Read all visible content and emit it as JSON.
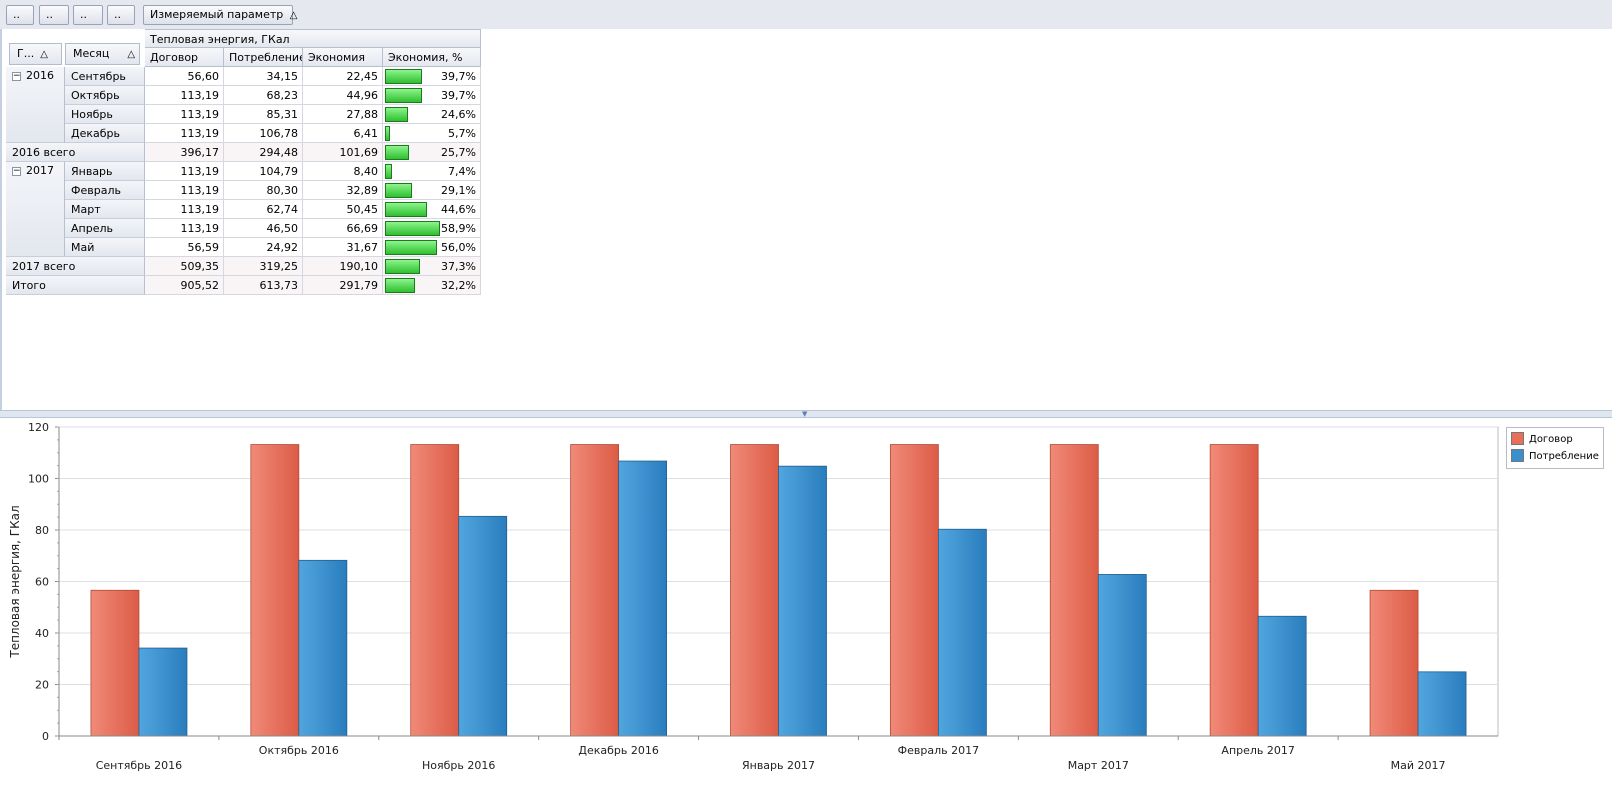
{
  "toolbar": {
    "filter_buttons": [
      "..",
      "..",
      "..",
      ".."
    ],
    "measure_button": "Измеряемый параметр",
    "measure_sort_glyph": "△"
  },
  "pivot": {
    "row_headers": {
      "year": "Г...",
      "year_sort": "△",
      "month": "Месяц",
      "month_sort": "△"
    },
    "group_header": "Тепловая энергия, ГКал",
    "columns": [
      "Договор",
      "Потребление",
      "Экономия",
      "Экономия, %"
    ],
    "expander_glyph": "−",
    "years": [
      {
        "year": "2016",
        "rows": [
          {
            "month": "Сентябрь",
            "contract": "56,60",
            "consumption": "34,15",
            "saving": "22,45",
            "percent": "39,7%",
            "percent_value": 39.7
          },
          {
            "month": "Октябрь",
            "contract": "113,19",
            "consumption": "68,23",
            "saving": "44,96",
            "percent": "39,7%",
            "percent_value": 39.7
          },
          {
            "month": "Ноябрь",
            "contract": "113,19",
            "consumption": "85,31",
            "saving": "27,88",
            "percent": "24,6%",
            "percent_value": 24.6
          },
          {
            "month": "Декабрь",
            "contract": "113,19",
            "consumption": "106,78",
            "saving": "6,41",
            "percent": "5,7%",
            "percent_value": 5.7
          }
        ],
        "total": {
          "label": "2016 всего",
          "contract": "396,17",
          "consumption": "294,48",
          "saving": "101,69",
          "percent": "25,7%",
          "percent_value": 25.7
        }
      },
      {
        "year": "2017",
        "rows": [
          {
            "month": "Январь",
            "contract": "113,19",
            "consumption": "104,79",
            "saving": "8,40",
            "percent": "7,4%",
            "percent_value": 7.4
          },
          {
            "month": "Февраль",
            "contract": "113,19",
            "consumption": "80,30",
            "saving": "32,89",
            "percent": "29,1%",
            "percent_value": 29.1
          },
          {
            "month": "Март",
            "contract": "113,19",
            "consumption": "62,74",
            "saving": "50,45",
            "percent": "44,6%",
            "percent_value": 44.6
          },
          {
            "month": "Апрель",
            "contract": "113,19",
            "consumption": "46,50",
            "saving": "66,69",
            "percent": "58,9%",
            "percent_value": 58.9
          },
          {
            "month": "Май",
            "contract": "56,59",
            "consumption": "24,92",
            "saving": "31,67",
            "percent": "56,0%",
            "percent_value": 56.0
          }
        ],
        "total": {
          "label": "2017 всего",
          "contract": "509,35",
          "consumption": "319,25",
          "saving": "190,10",
          "percent": "37,3%",
          "percent_value": 37.3
        }
      }
    ],
    "grand_total": {
      "label": "Итого",
      "contract": "905,52",
      "consumption": "613,73",
      "saving": "291,79",
      "percent": "32,2%",
      "percent_value": 32.2
    }
  },
  "splitter_glyph": "▼",
  "colors": {
    "contract": "#e8705a",
    "consumption": "#3a8fcc",
    "percent_bar": "#3fcf3f"
  },
  "chart_data": {
    "type": "bar",
    "title": "",
    "xlabel": "",
    "ylabel": "Тепловая энергия, ГКал",
    "ylim": [
      0,
      120
    ],
    "yticks": [
      0,
      20,
      40,
      60,
      80,
      100,
      120
    ],
    "grid": true,
    "legend_position": "top-right",
    "categories": [
      "Сентябрь 2016",
      "Октябрь 2016",
      "Ноябрь 2016",
      "Декабрь 2016",
      "Январь 2017",
      "Февраль 2017",
      "Март 2017",
      "Апрель 2017",
      "Май 2017"
    ],
    "series": [
      {
        "name": "Договор",
        "color": "#e8705a",
        "values": [
          56.6,
          113.19,
          113.19,
          113.19,
          113.19,
          113.19,
          113.19,
          113.19,
          56.59
        ]
      },
      {
        "name": "Потребление",
        "color": "#3a8fcc",
        "values": [
          34.15,
          68.23,
          85.31,
          106.78,
          104.79,
          80.3,
          62.74,
          46.5,
          24.92
        ]
      }
    ]
  }
}
